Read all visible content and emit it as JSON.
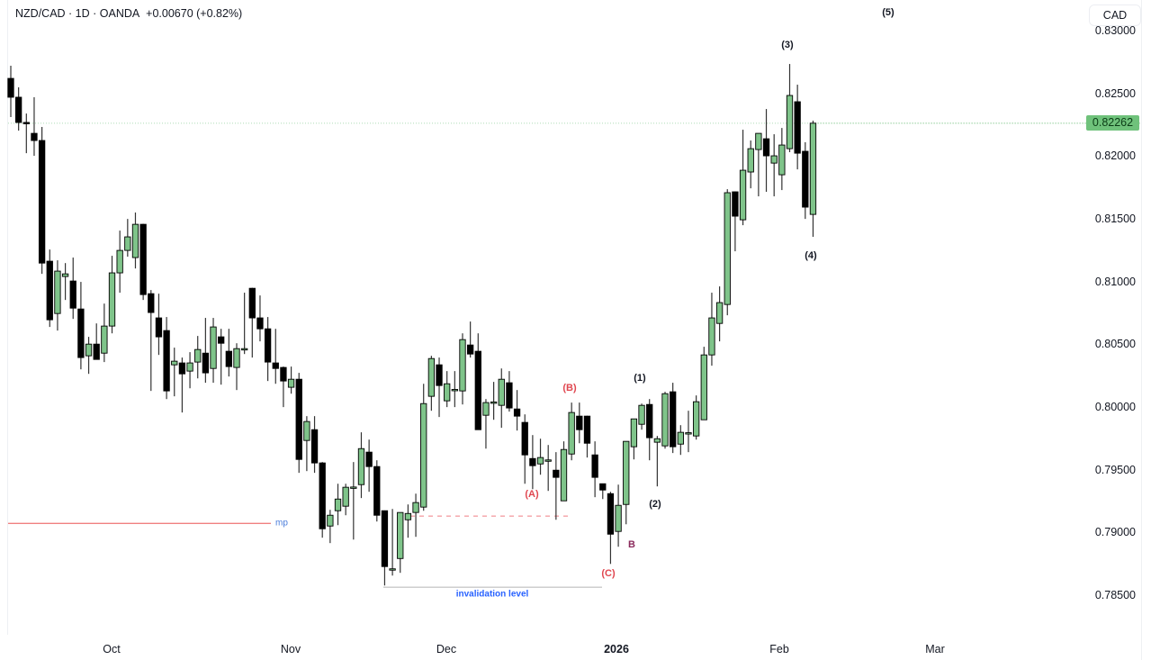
{
  "header": {
    "symbol": "NZD/CAD",
    "interval": "1D",
    "source": "OANDA",
    "change": "+0.00670 (+0.82%)",
    "separator": " · "
  },
  "currency_button": "CAD",
  "last_price_label": "0.82262",
  "colors": {
    "up": "#7fc48a",
    "down": "#000000",
    "wick": "#333333",
    "mp_line": "#f08080",
    "dashed_line": "#f4a0a6",
    "invalidation_line": "#c8c8c8",
    "last_price": "#6fc27b",
    "label_blue": "#2962ff"
  },
  "annotations": {
    "w1": "(1)",
    "w2": "(2)",
    "w3": "(3)",
    "w4": "(4)",
    "w5": "(5)",
    "a": "(A)",
    "b": "(B)",
    "c": "(C)",
    "b_small": "B",
    "mp": "mp",
    "invalidation": "invalidation level"
  },
  "chart_data": {
    "type": "candlestick",
    "title": "",
    "y_axis": {
      "position": "right",
      "ticks": [
        "0.83000",
        "0.82500",
        "0.82000",
        "0.81500",
        "0.81000",
        "0.80500",
        "0.80000",
        "0.79500",
        "0.79000",
        "0.78500"
      ],
      "range": [
        0.7838,
        0.8306
      ]
    },
    "x_axis": {
      "ticks": [
        {
          "label": "Oct",
          "bold": false
        },
        {
          "label": "Nov",
          "bold": false
        },
        {
          "label": "Dec",
          "bold": false
        },
        {
          "label": "2026",
          "bold": true
        },
        {
          "label": "Feb",
          "bold": false
        },
        {
          "label": "Mar",
          "bold": false
        }
      ]
    },
    "grid": false,
    "last_price": 0.82262,
    "levels": {
      "mp": 0.79072,
      "dashed": 0.7913,
      "invalidation": 0.78563
    },
    "ohlc": [
      [
        0.82619,
        0.8272,
        0.82311,
        0.82469
      ],
      [
        0.82469,
        0.82548,
        0.82203,
        0.82268
      ],
      [
        0.82268,
        0.82339,
        0.82023,
        0.82262
      ],
      [
        0.82181,
        0.82469,
        0.82002,
        0.82124
      ],
      [
        0.82124,
        0.82232,
        0.81061,
        0.81147
      ],
      [
        0.81162,
        0.81255,
        0.80638,
        0.80695
      ],
      [
        0.80745,
        0.81169,
        0.80609,
        0.81083
      ],
      [
        0.8104,
        0.81147,
        0.80853,
        0.81061
      ],
      [
        0.81004,
        0.81191,
        0.80702,
        0.80788
      ],
      [
        0.80781,
        0.80997,
        0.803,
        0.80394
      ],
      [
        0.80408,
        0.80559,
        0.80264,
        0.80501
      ],
      [
        0.80501,
        0.80666,
        0.80379,
        0.80379
      ],
      [
        0.80429,
        0.80824,
        0.80358,
        0.80645
      ],
      [
        0.80645,
        0.81205,
        0.80587,
        0.81069
      ],
      [
        0.81069,
        0.81406,
        0.80911,
        0.81248
      ],
      [
        0.81248,
        0.81499,
        0.81198,
        0.81356
      ],
      [
        0.81191,
        0.8155,
        0.81104,
        0.81456
      ],
      [
        0.81456,
        0.8146,
        0.80853,
        0.80896
      ],
      [
        0.80903,
        0.80932,
        0.80128,
        0.80753
      ],
      [
        0.8071,
        0.80903,
        0.80415,
        0.80559
      ],
      [
        0.80609,
        0.80717,
        0.80063,
        0.80128
      ],
      [
        0.80336,
        0.80473,
        0.80085,
        0.80365
      ],
      [
        0.80351,
        0.80394,
        0.79956,
        0.80264
      ],
      [
        0.80286,
        0.80437,
        0.80149,
        0.80351
      ],
      [
        0.80358,
        0.80566,
        0.80228,
        0.80458
      ],
      [
        0.80429,
        0.8071,
        0.80193,
        0.80272
      ],
      [
        0.80307,
        0.8071,
        0.80193,
        0.80638
      ],
      [
        0.80559,
        0.80623,
        0.80178,
        0.80508
      ],
      [
        0.80444,
        0.80623,
        0.80243,
        0.80322
      ],
      [
        0.80315,
        0.80508,
        0.80135,
        0.80465
      ],
      [
        0.80458,
        0.80911,
        0.80422,
        0.80465
      ],
      [
        0.80946,
        0.8095,
        0.80394,
        0.8071
      ],
      [
        0.8071,
        0.80889,
        0.80523,
        0.80623
      ],
      [
        0.80623,
        0.80717,
        0.80207,
        0.80358
      ],
      [
        0.80351,
        0.80623,
        0.80185,
        0.80307
      ],
      [
        0.80315,
        0.80322,
        0.79999,
        0.80207
      ],
      [
        0.80157,
        0.80322,
        0.80106,
        0.80221
      ],
      [
        0.80221,
        0.80272,
        0.79475,
        0.79582
      ],
      [
        0.79733,
        0.79927,
        0.79489,
        0.79884
      ],
      [
        0.79819,
        0.79927,
        0.79475,
        0.79554
      ],
      [
        0.79554,
        0.79561,
        0.78958,
        0.79029
      ],
      [
        0.79051,
        0.7918,
        0.78915,
        0.79137
      ],
      [
        0.79173,
        0.79388,
        0.79058,
        0.79266
      ],
      [
        0.79209,
        0.79388,
        0.79137,
        0.7936
      ],
      [
        0.7936,
        0.79561,
        0.78943,
        0.79362
      ],
      [
        0.79381,
        0.79798,
        0.79274,
        0.79668
      ],
      [
        0.7964,
        0.7974,
        0.79324,
        0.79525
      ],
      [
        0.79525,
        0.79575,
        0.79087,
        0.79137
      ],
      [
        0.79173,
        0.79175,
        0.78577,
        0.78728
      ],
      [
        0.78706,
        0.79187,
        0.78656,
        0.7871
      ],
      [
        0.78792,
        0.79159,
        0.78678,
        0.79159
      ],
      [
        0.79101,
        0.79223,
        0.78958,
        0.79151
      ],
      [
        0.79159,
        0.79309,
        0.78965,
        0.79238
      ],
      [
        0.79202,
        0.80185,
        0.79173,
        0.80027
      ],
      [
        0.80085,
        0.80408,
        0.7997,
        0.80386
      ],
      [
        0.80336,
        0.80394,
        0.7992,
        0.80171
      ],
      [
        0.80049,
        0.80286,
        0.79999,
        0.80185
      ],
      [
        0.80135,
        0.80286,
        0.79999,
        0.8014
      ],
      [
        0.80128,
        0.80587,
        0.8002,
        0.80537
      ],
      [
        0.80494,
        0.80681,
        0.80394,
        0.80422
      ],
      [
        0.80444,
        0.80587,
        0.79819,
        0.79819
      ],
      [
        0.79934,
        0.80063,
        0.79668,
        0.80035
      ],
      [
        0.80035,
        0.802,
        0.79898,
        0.8004
      ],
      [
        0.80013,
        0.80307,
        0.79834,
        0.80221
      ],
      [
        0.80193,
        0.80286,
        0.79963,
        0.79992
      ],
      [
        0.79984,
        0.80135,
        0.79812,
        0.79927
      ],
      [
        0.79877,
        0.79941,
        0.79388,
        0.79618
      ],
      [
        0.79589,
        0.79776,
        0.79345,
        0.79532
      ],
      [
        0.79546,
        0.79747,
        0.7946,
        0.79597
      ],
      [
        0.79575,
        0.79697,
        0.79331,
        0.79578
      ],
      [
        0.79496,
        0.7964,
        0.79101,
        0.79439
      ],
      [
        0.79252,
        0.79726,
        0.7925,
        0.79661
      ],
      [
        0.79625,
        0.80035,
        0.79575,
        0.79956
      ],
      [
        0.79927,
        0.80035,
        0.79711,
        0.79819
      ],
      [
        0.79927,
        0.7993,
        0.79597,
        0.79711
      ],
      [
        0.79618,
        0.79726,
        0.79281,
        0.79439
      ],
      [
        0.79388,
        0.7939,
        0.79266,
        0.79338
      ],
      [
        0.79309,
        0.79324,
        0.78749,
        0.78986
      ],
      [
        0.79008,
        0.79381,
        0.78886,
        0.79216
      ],
      [
        0.79223,
        0.79726,
        0.79065,
        0.79726
      ],
      [
        0.79683,
        0.79905,
        0.79582,
        0.79905
      ],
      [
        0.79862,
        0.80027,
        0.79819,
        0.80013
      ],
      [
        0.8002,
        0.80063,
        0.79575,
        0.79755
      ],
      [
        0.79719,
        0.79769,
        0.79367,
        0.79747
      ],
      [
        0.7969,
        0.80121,
        0.79668,
        0.80106
      ],
      [
        0.80121,
        0.80193,
        0.79633,
        0.79683
      ],
      [
        0.79704,
        0.79855,
        0.79618,
        0.79798
      ],
      [
        0.7979,
        0.7997,
        0.7964,
        0.79795
      ],
      [
        0.79769,
        0.80092,
        0.7974,
        0.80042
      ],
      [
        0.79898,
        0.8048,
        0.79896,
        0.80415
      ],
      [
        0.80415,
        0.80911,
        0.80329,
        0.8071
      ],
      [
        0.80666,
        0.80961,
        0.80523,
        0.80832
      ],
      [
        0.80817,
        0.81736,
        0.80731,
        0.81708
      ],
      [
        0.81715,
        0.81718,
        0.81241,
        0.81521
      ],
      [
        0.81492,
        0.8221,
        0.81449,
        0.81887
      ],
      [
        0.81873,
        0.82124,
        0.81743,
        0.82059
      ],
      [
        0.82052,
        0.82181,
        0.81679,
        0.82181
      ],
      [
        0.82138,
        0.82375,
        0.81715,
        0.82002
      ],
      [
        0.81944,
        0.82174,
        0.81679,
        0.82002
      ],
      [
        0.81851,
        0.82224,
        0.81729,
        0.82088
      ],
      [
        0.82059,
        0.82734,
        0.82031,
        0.82483
      ],
      [
        0.82433,
        0.82569,
        0.81894,
        0.82023
      ],
      [
        0.82038,
        0.8211,
        0.81499,
        0.81593
      ],
      [
        0.81535,
        0.82282,
        0.81356,
        0.82262
      ]
    ]
  }
}
